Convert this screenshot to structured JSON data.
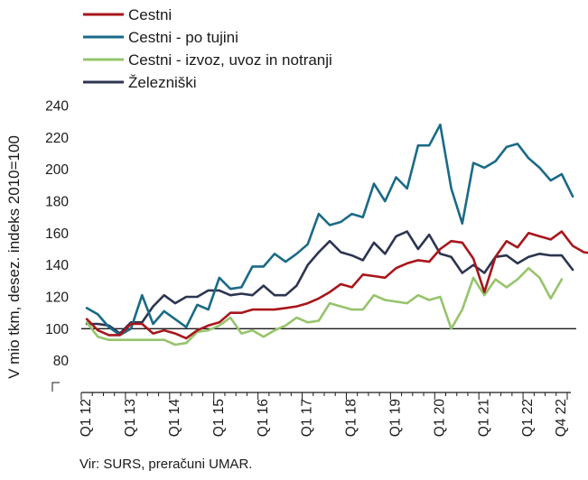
{
  "chart_data": {
    "type": "line",
    "ylabel": "V mio tkm, desez. indeks 2010=100",
    "ylim": [
      60,
      240
    ],
    "yticks": [
      80,
      100,
      120,
      140,
      160,
      180,
      200,
      220,
      240
    ],
    "reference_line": 100,
    "x_tick_labels": [
      "Q1 12",
      "Q1 13",
      "Q1 14",
      "Q1 15",
      "Q1 16",
      "Q1 17",
      "Q1 18",
      "Q1 19",
      "Q1 20",
      "Q1 21",
      "Q1 22",
      "Q4 22"
    ],
    "legend_position": "top-left",
    "series": [
      {
        "name": "Cestni",
        "color": "#a8161b",
        "values": [
          106,
          99,
          96,
          96,
          103,
          103,
          97,
          99,
          97,
          94,
          99,
          102,
          104,
          110,
          110,
          112,
          112,
          112,
          113,
          114,
          116,
          119,
          123,
          128,
          126,
          134,
          133,
          132,
          138,
          141,
          143,
          142,
          150,
          155,
          154,
          144,
          123,
          145,
          155,
          151,
          160,
          158,
          156,
          161,
          152,
          148,
          147
        ]
      },
      {
        "name": "Cestni - po tujini",
        "color": "#1a6a87",
        "values": [
          113,
          109,
          101,
          96,
          100,
          121,
          103,
          111,
          106,
          101,
          115,
          112,
          132,
          125,
          126,
          139,
          139,
          147,
          142,
          147,
          153,
          172,
          165,
          167,
          172,
          170,
          191,
          180,
          195,
          188,
          215,
          215,
          228,
          188,
          166,
          204,
          201,
          205,
          214,
          216,
          207,
          201,
          193,
          197,
          183
        ]
      },
      {
        "name": "Cestni - izvoz, uvoz in notranji",
        "color": "#96c46c",
        "values": [
          104,
          95,
          93,
          93,
          93,
          93,
          93,
          93,
          90,
          91,
          98,
          99,
          102,
          107,
          97,
          99,
          95,
          99,
          102,
          107,
          104,
          105,
          116,
          114,
          112,
          112,
          121,
          118,
          117,
          116,
          121,
          118,
          120,
          100,
          112,
          132,
          121,
          131,
          126,
          131,
          138,
          132,
          119,
          131
        ]
      },
      {
        "name": "Železniški",
        "color": "#2c3550",
        "values": [
          103,
          103,
          102,
          97,
          104,
          104,
          114,
          121,
          116,
          120,
          120,
          124,
          124,
          121,
          122,
          121,
          127,
          121,
          121,
          127,
          140,
          148,
          155,
          148,
          146,
          143,
          154,
          147,
          158,
          161,
          150,
          159,
          147,
          145,
          135,
          140,
          135,
          145,
          146,
          141,
          145,
          147,
          146,
          146,
          137
        ]
      }
    ]
  },
  "source": "Vir: SURS, preračuni UMAR."
}
